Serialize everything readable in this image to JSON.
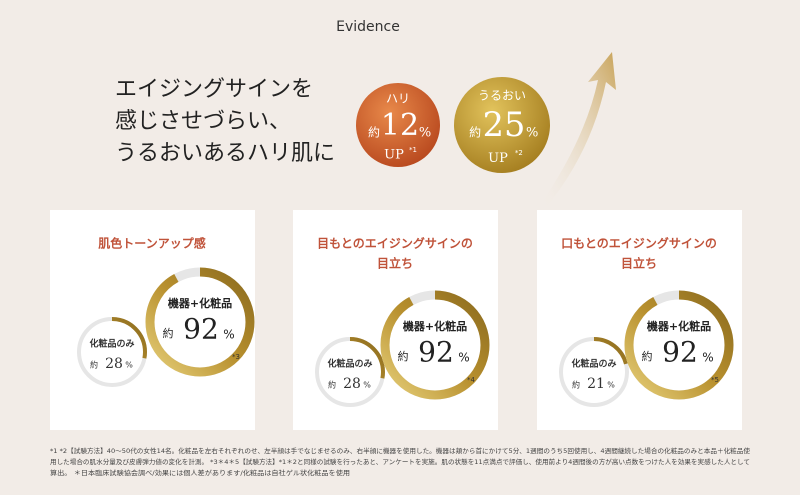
{
  "header": {
    "title": "Evidence"
  },
  "headline": {
    "lines": [
      "エイジングサインを",
      "感じさせづらい、",
      "うるおいあるハリ肌に"
    ]
  },
  "badges": [
    {
      "label": "ハリ",
      "prefix": "約",
      "value": 12,
      "unit": "%",
      "suffix": "UP",
      "note": "*1"
    },
    {
      "label": "うるおい",
      "prefix": "約",
      "value": 25,
      "unit": "%",
      "suffix": "UP",
      "note": "*2"
    }
  ],
  "cards": [
    {
      "title_lines": [
        "肌色トーンアップ感"
      ],
      "main": {
        "label": "機器+化粧品",
        "prefix": "約",
        "value": 92,
        "unit": "%"
      },
      "sub": {
        "label": "化粧品のみ",
        "prefix": "約",
        "value": 28,
        "unit": "%"
      },
      "note": "*3"
    },
    {
      "title_lines": [
        "目もとのエイジングサインの",
        "目立ち"
      ],
      "main": {
        "label": "機器+化粧品",
        "prefix": "約",
        "value": 92,
        "unit": "%"
      },
      "sub": {
        "label": "化粧品のみ",
        "prefix": "約",
        "value": 28,
        "unit": "%"
      },
      "note": "*4"
    },
    {
      "title_lines": [
        "口もとのエイジングサインの",
        "目立ち"
      ],
      "main": {
        "label": "機器+化粧品",
        "prefix": "約",
        "value": 92,
        "unit": "%"
      },
      "sub": {
        "label": "化粧品のみ",
        "prefix": "約",
        "value": 21,
        "unit": "%"
      },
      "note": "*5"
    }
  ],
  "footnote": {
    "lines": [
      "*1 *2【試験方法】40～50代の女性14名。化粧品を左右それぞれのせ、左半顔は手でなじませるのみ、右半顔に機器を使用した。機器は頬から首にかけて5分、1週間のうち5回使用し、4週間継続した場合の化粧品のみと本品＋化粧品使",
      "用した場合の肌水分量及び皮膚弾力値の変化を計測。 *3＊4＊5【試験方法】*1＊2と同様の試験を行ったあと、アンケートを実施。肌の状態を11点満点で評価し、使用前より4週間後の方が高い点数をつけた人を効果を実感した人として",
      "算出。 ＊日本臨床試験協会調べ/効果には個人差があります/化粧品は自社ゲル状化粧品を使用"
    ]
  }
}
